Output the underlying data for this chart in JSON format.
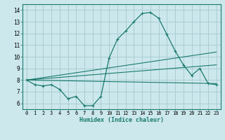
{
  "title": "",
  "xlabel": "Humidex (Indice chaleur)",
  "ylabel": "",
  "bg_color": "#cce8ec",
  "grid_color": "#aacdd4",
  "line_color": "#1a7a6e",
  "x_ticks": [
    0,
    1,
    2,
    3,
    4,
    5,
    6,
    7,
    8,
    9,
    10,
    11,
    12,
    13,
    14,
    15,
    16,
    17,
    18,
    19,
    20,
    21,
    22,
    23
  ],
  "y_ticks": [
    6,
    7,
    8,
    9,
    10,
    11,
    12,
    13,
    14
  ],
  "ylim": [
    5.5,
    14.5
  ],
  "xlim": [
    -0.5,
    23.5
  ],
  "series": [
    {
      "x": [
        0,
        1,
        2,
        3,
        4,
        5,
        6,
        7,
        8,
        9,
        10,
        11,
        12,
        13,
        14,
        15,
        16,
        17,
        18,
        19,
        20,
        21,
        22,
        23
      ],
      "y": [
        8.0,
        7.6,
        7.5,
        7.6,
        7.2,
        6.4,
        6.6,
        5.8,
        5.8,
        6.6,
        9.9,
        11.5,
        12.2,
        13.0,
        13.7,
        13.8,
        13.3,
        11.9,
        10.5,
        9.3,
        8.4,
        9.0,
        7.7,
        7.6
      ]
    },
    {
      "x": [
        0,
        23
      ],
      "y": [
        8.0,
        7.7
      ]
    },
    {
      "x": [
        0,
        23
      ],
      "y": [
        8.0,
        10.4
      ]
    },
    {
      "x": [
        0,
        23
      ],
      "y": [
        8.0,
        9.3
      ]
    }
  ]
}
